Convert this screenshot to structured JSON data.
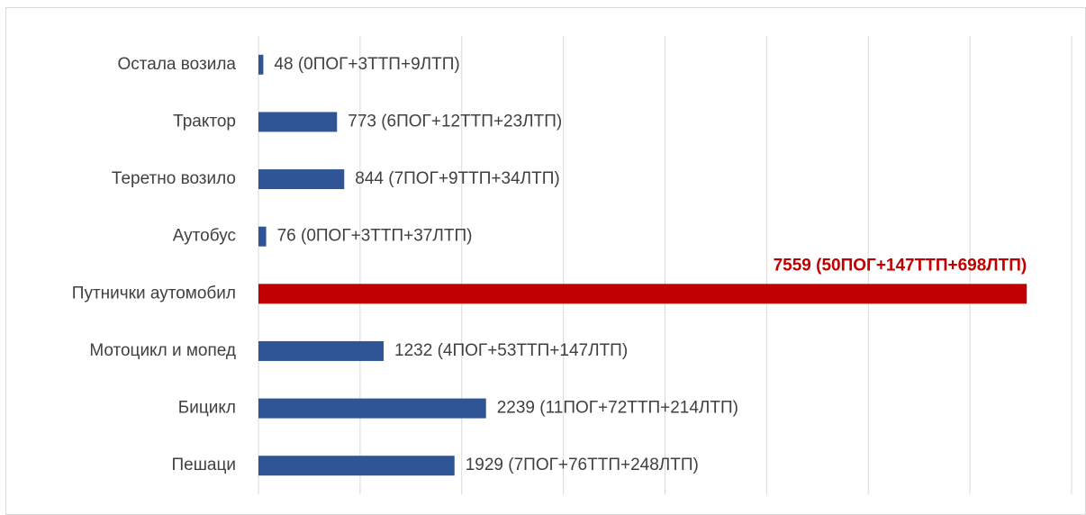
{
  "chart_data": {
    "type": "bar",
    "orientation": "horizontal",
    "categories": [
      "Остала возила",
      "Трактор",
      "Теретно возило",
      "Аутобус",
      "Путнички аутомобил",
      "Мотоцикл и мопед",
      "Бицикл",
      "Пешаци"
    ],
    "values": [
      48,
      773,
      844,
      76,
      7559,
      1232,
      2239,
      1929
    ],
    "value_labels": [
      "48 (0ПОГ+3ТТП+9ЛТП)",
      "773 (6ПОГ+12ТТП+23ЛТП)",
      "844 (7ПОГ+9ТТП+34ЛТП)",
      "76 (0ПОГ+3ТТП+37ЛТП)",
      "7559 (50ПОГ+147ТТП+698ЛТП)",
      "1232 (4ПОГ+53ТТП+147ЛТП)",
      "2239 (11ПОГ+72ТТП+214ЛТП)",
      "1929 (7ПОГ+76ТТП+248ЛТП)"
    ],
    "colors": [
      "#2f5597",
      "#2f5597",
      "#2f5597",
      "#2f5597",
      "#c00000",
      "#2f5597",
      "#2f5597",
      "#2f5597"
    ],
    "highlight_index": 4,
    "xlim": [
      0,
      8000
    ],
    "xticks": [
      0,
      1000,
      2000,
      3000,
      4000,
      5000,
      6000,
      7000,
      8000
    ],
    "grid": true
  }
}
